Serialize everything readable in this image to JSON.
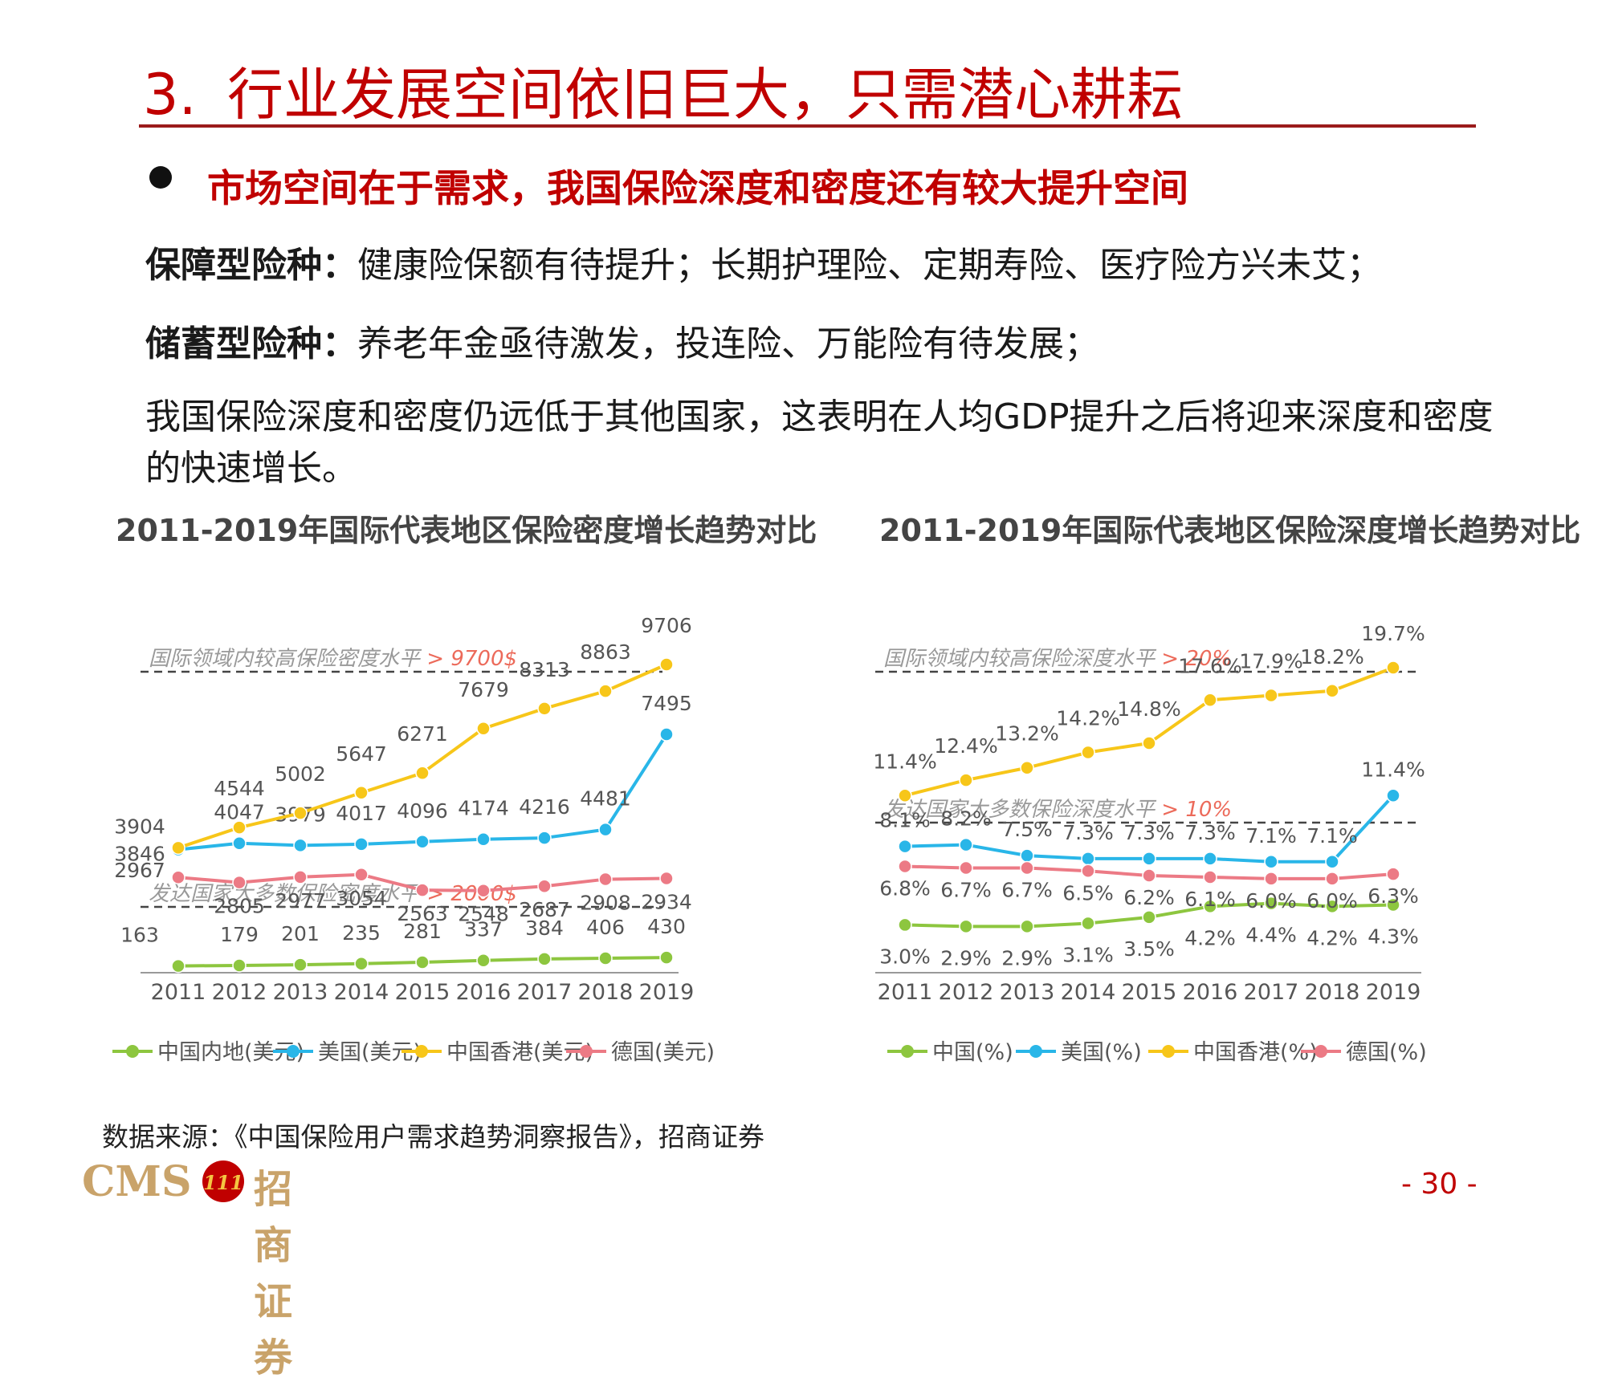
{
  "slide": {
    "number": "3.",
    "title": "行业发展空间依旧巨大，只需潜心耕耘",
    "subtitle": "市场空间在于需求，我国保险深度和密度还有较大提升空间",
    "line1_label": "保障型险种：",
    "line1_text": "健康险保额有待提升；长期护理险、定期寿险、医疗险方兴未艾；",
    "line2_label": "储蓄型险种：",
    "line2_text": "养老年金亟待激发，投连险、万能险有待发展；",
    "paragraph": "我国保险深度和密度仍远低于其他国家，这表明在人均GDP提升之后将迎来深度和密度的快速增长。",
    "source": "数据来源：《中国保险用户需求趋势洞察报告》，招商证券",
    "logo_text": "CMS",
    "logo_badge": "111",
    "logo_cn": "招商证券",
    "page_number": "- 30 -"
  },
  "colors": {
    "accent": "#c00000",
    "green": "#8dc63f",
    "blue": "#29b6e8",
    "yellow": "#f7c619",
    "pink": "#ec7a85",
    "ref": "#ec6a5a"
  },
  "chart_data": [
    {
      "type": "line",
      "title": "2011-2019年国际代表地区保险密度增长趋势对比",
      "categories": [
        "2011",
        "2012",
        "2013",
        "2014",
        "2015",
        "2016",
        "2017",
        "2018",
        "2019"
      ],
      "reference_lines": [
        {
          "label": "国际领域内较高保险密度水平",
          "value_label": "> 9700$",
          "value": 9700
        },
        {
          "label": "发达国家大多数保险密度水平",
          "value_label": "> 2000$",
          "value": 2000
        }
      ],
      "series": [
        {
          "name": "中国内地(美元)",
          "color": "#8dc63f",
          "values": [
            163,
            179,
            201,
            235,
            281,
            337,
            384,
            406,
            430
          ],
          "labels": [
            "163",
            "179",
            "201",
            "235",
            "281",
            "337",
            "384",
            "406",
            "430"
          ]
        },
        {
          "name": "美国(美元)",
          "color": "#29b6e8",
          "values": [
            3846,
            4047,
            3979,
            4017,
            4096,
            4174,
            4216,
            4481,
            7495
          ],
          "labels": [
            "3846",
            "4047",
            "3979",
            "4017",
            "4096",
            "4174",
            "4216",
            "4481",
            "7495"
          ]
        },
        {
          "name": "中国香港(美元)",
          "color": "#f7c619",
          "values": [
            3904,
            4544,
            5002,
            5647,
            6271,
            7679,
            8313,
            8863,
            9706
          ],
          "labels": [
            "3904",
            "4544",
            "5002",
            "5647",
            "6271",
            "7679",
            "8313",
            "8863",
            "9706"
          ]
        },
        {
          "name": "德国(美元)",
          "color": "#ec7a85",
          "values": [
            2967,
            2805,
            2977,
            3054,
            2563,
            2548,
            2687,
            2908,
            2934
          ],
          "labels": [
            "2967",
            "2805",
            "2977",
            "3054",
            "2563",
            "2548",
            "2687",
            "2908",
            "2934"
          ]
        }
      ]
    },
    {
      "type": "line",
      "title": "2011-2019年国际代表地区保险深度增长趋势对比",
      "categories": [
        "2011",
        "2012",
        "2013",
        "2014",
        "2015",
        "2016",
        "2017",
        "2018",
        "2019"
      ],
      "reference_lines": [
        {
          "label": "国际领域内较高保险深度水平",
          "value_label": "> 20%",
          "value": 20
        },
        {
          "label": "发达国家大多数保险深度水平",
          "value_label": "> 10%",
          "value": 10
        }
      ],
      "series": [
        {
          "name": "中国(%)",
          "color": "#8dc63f",
          "values": [
            3.0,
            2.9,
            2.9,
            3.1,
            3.5,
            4.2,
            4.4,
            4.2,
            4.3
          ],
          "labels": [
            "3.0%",
            "2.9%",
            "2.9%",
            "3.1%",
            "3.5%",
            "4.2%",
            "4.4%",
            "4.2%",
            "4.3%"
          ]
        },
        {
          "name": "美国(%)",
          "color": "#29b6e8",
          "values": [
            8.1,
            8.2,
            7.5,
            7.3,
            7.3,
            7.3,
            7.1,
            7.1,
            11.4
          ],
          "labels": [
            "8.1%",
            "8.2%",
            "7.5%",
            "7.3%",
            "7.3%",
            "7.3%",
            "7.1%",
            "7.1%",
            "11.4%"
          ]
        },
        {
          "name": "中国香港(%)",
          "color": "#f7c619",
          "values": [
            11.4,
            12.4,
            13.2,
            14.2,
            14.8,
            17.6,
            17.9,
            18.2,
            19.7
          ],
          "labels": [
            "11.4%",
            "12.4%",
            "13.2%",
            "14.2%",
            "14.8%",
            "17.6%",
            "17.9%",
            "18.2%",
            "19.7%"
          ]
        },
        {
          "name": "德国(%)",
          "color": "#ec7a85",
          "values": [
            6.8,
            6.7,
            6.7,
            6.5,
            6.2,
            6.1,
            6.0,
            6.0,
            6.3
          ],
          "labels": [
            "6.8%",
            "6.7%",
            "6.7%",
            "6.5%",
            "6.2%",
            "6.1%",
            "6.0%",
            "6.0%",
            "6.3%"
          ]
        }
      ]
    }
  ]
}
